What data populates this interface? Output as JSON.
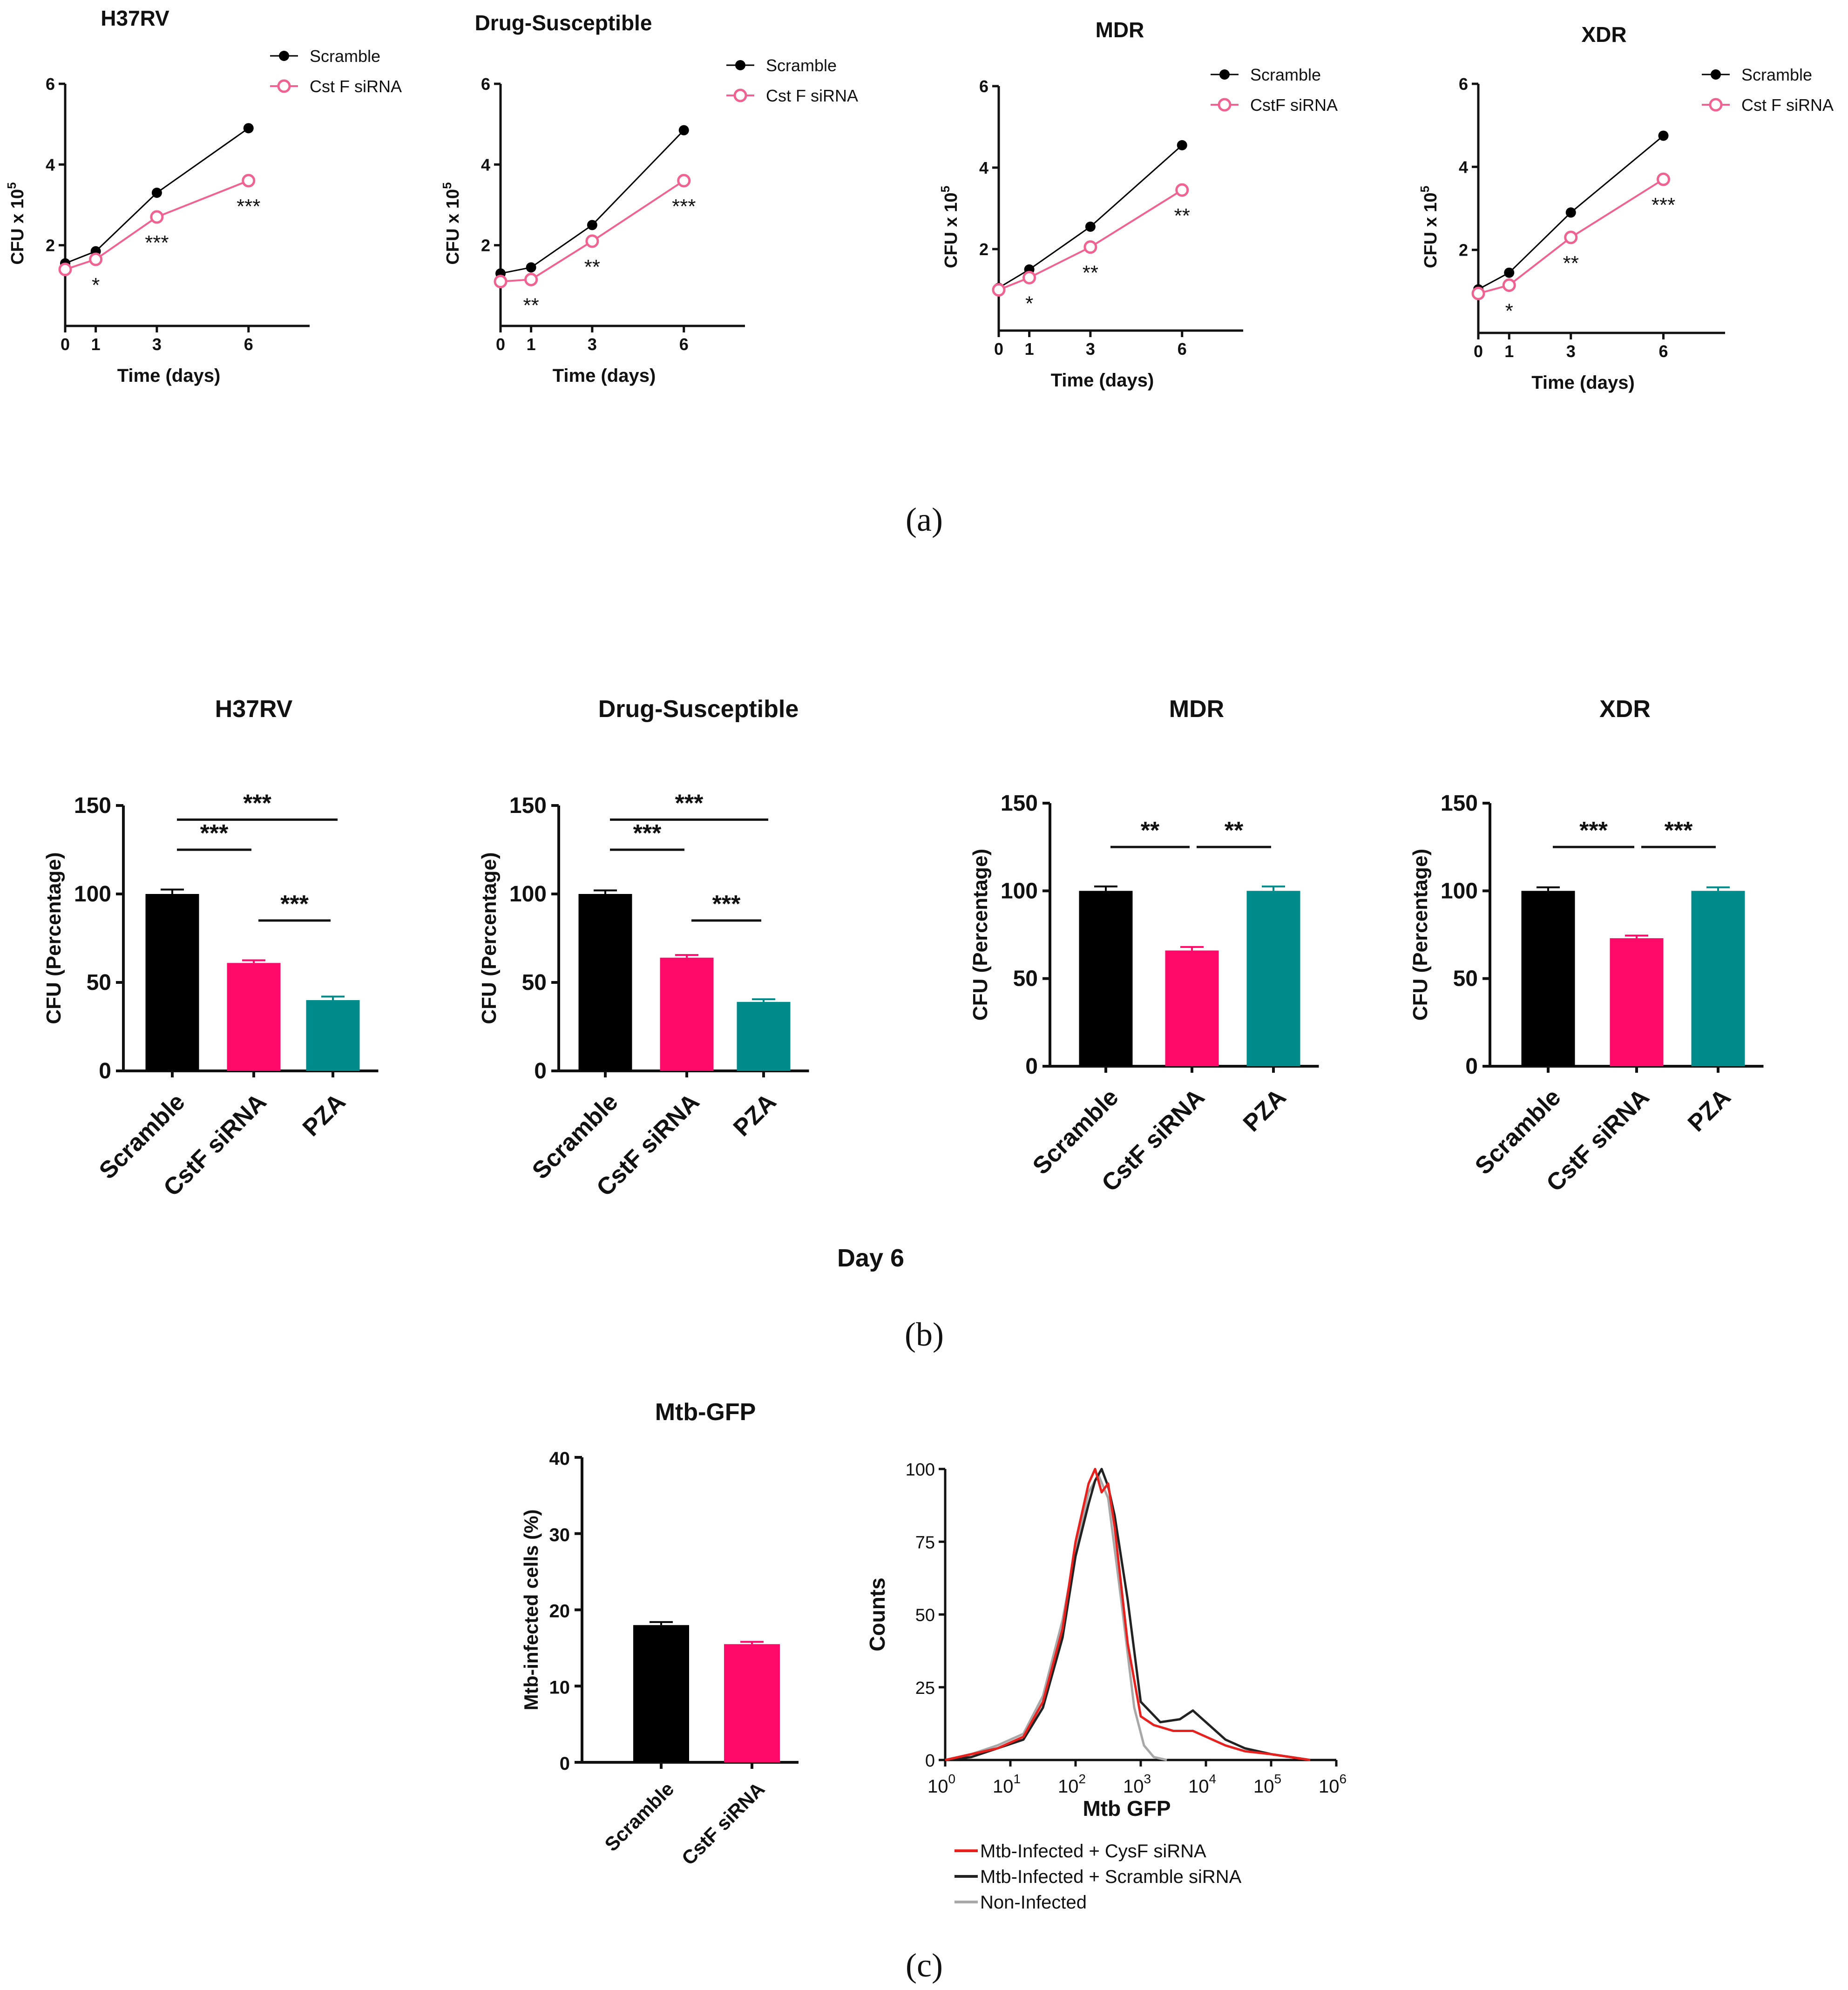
{
  "colors": {
    "scramble": "#000000",
    "cstf": "#f06292",
    "bar_cstf": "#ff0a68",
    "bar_pza": "#008b8b",
    "hist_cysf": "#e8201e",
    "hist_scramble": "#222222",
    "hist_noninf": "#a8a8a8"
  },
  "panel_letters": {
    "a": "(a)",
    "b": "(b)",
    "c": "(c)"
  },
  "day6_label": "Day 6",
  "chart_data": [
    {
      "id": "a1",
      "panel": "a",
      "type": "line",
      "title": "H37RV",
      "xlabel": "Time (days)",
      "ylabel": "CFU x 10",
      "ylabel_sup": "5",
      "x": [
        0,
        1,
        3,
        6
      ],
      "xticks": [
        "0",
        "1",
        "3",
        "6"
      ],
      "xlim": [
        0,
        8
      ],
      "ylim": [
        0,
        6
      ],
      "yticks": [
        "2",
        "4",
        "6"
      ],
      "series": [
        {
          "name": "Scramble",
          "values": [
            1.55,
            1.85,
            3.3,
            4.9
          ]
        },
        {
          "name": "Cst F siRNA",
          "values": [
            1.4,
            1.65,
            2.7,
            3.6
          ]
        }
      ],
      "significance": [
        "",
        "*",
        "***",
        "***"
      ]
    },
    {
      "id": "a2",
      "panel": "a",
      "type": "line",
      "title": "Drug-Susceptible",
      "xlabel": "Time (days)",
      "ylabel": "CFU x 10",
      "ylabel_sup": "5",
      "x": [
        0,
        1,
        3,
        6
      ],
      "xticks": [
        "0",
        "1",
        "3",
        "6"
      ],
      "xlim": [
        0,
        8
      ],
      "ylim": [
        0,
        6
      ],
      "yticks": [
        "2",
        "4",
        "6"
      ],
      "series": [
        {
          "name": "Scramble",
          "values": [
            1.3,
            1.45,
            2.5,
            4.85
          ]
        },
        {
          "name": "Cst F siRNA",
          "values": [
            1.1,
            1.15,
            2.1,
            3.6
          ]
        }
      ],
      "significance": [
        "",
        "**",
        "**",
        "***"
      ]
    },
    {
      "id": "a3",
      "panel": "a",
      "type": "line",
      "title": "MDR",
      "xlabel": "Time (days)",
      "ylabel": "CFU x 10",
      "ylabel_sup": "5",
      "x": [
        0,
        1,
        3,
        6
      ],
      "xticks": [
        "0",
        "1",
        "3",
        "6"
      ],
      "xlim": [
        0,
        8
      ],
      "ylim": [
        0,
        6
      ],
      "yticks": [
        "2",
        "4",
        "6"
      ],
      "series": [
        {
          "name": "Scramble",
          "values": [
            1.05,
            1.5,
            2.55,
            4.55
          ]
        },
        {
          "name": "CstF siRNA",
          "values": [
            1.0,
            1.3,
            2.05,
            3.45
          ]
        }
      ],
      "significance": [
        "",
        "*",
        "**",
        "**"
      ]
    },
    {
      "id": "a4",
      "panel": "a",
      "type": "line",
      "title": "XDR",
      "xlabel": "Time (days)",
      "ylabel": "CFU x 10",
      "ylabel_sup": "5",
      "x": [
        0,
        1,
        3,
        6
      ],
      "xticks": [
        "0",
        "1",
        "3",
        "6"
      ],
      "xlim": [
        0,
        8
      ],
      "ylim": [
        0,
        6
      ],
      "yticks": [
        "2",
        "4",
        "6"
      ],
      "series": [
        {
          "name": "Scramble",
          "values": [
            1.05,
            1.45,
            2.9,
            4.75
          ]
        },
        {
          "name": "Cst F siRNA",
          "values": [
            0.95,
            1.15,
            2.3,
            3.7
          ]
        }
      ],
      "significance": [
        "",
        "*",
        "**",
        "***"
      ]
    },
    {
      "id": "b1",
      "panel": "b",
      "type": "bar",
      "title": "H37RV",
      "ylabel": "CFU (Percentage)",
      "ylim": [
        0,
        150
      ],
      "yticks": [
        "0",
        "50",
        "100",
        "150"
      ],
      "categories": [
        "Scramble",
        "CstF siRNA",
        "PZA"
      ],
      "values": [
        100,
        61,
        40
      ],
      "errors": [
        2.5,
        1.5,
        2
      ],
      "brackets": [
        {
          "from": 0,
          "to": 2,
          "label": "***"
        },
        {
          "from": 0,
          "to": 1,
          "label": "***"
        },
        {
          "from": 1,
          "to": 2,
          "label": "***"
        }
      ]
    },
    {
      "id": "b2",
      "panel": "b",
      "type": "bar",
      "title": "Drug-Susceptible",
      "ylabel": "CFU (Percentage)",
      "ylim": [
        0,
        150
      ],
      "yticks": [
        "0",
        "50",
        "100",
        "150"
      ],
      "categories": [
        "Scramble",
        "CstF siRNA",
        "PZA"
      ],
      "values": [
        100,
        64,
        39
      ],
      "errors": [
        2,
        1.5,
        1.5
      ],
      "brackets": [
        {
          "from": 0,
          "to": 2,
          "label": "***"
        },
        {
          "from": 0,
          "to": 1,
          "label": "***"
        },
        {
          "from": 1,
          "to": 2,
          "label": "***"
        }
      ]
    },
    {
      "id": "b3",
      "panel": "b",
      "type": "bar",
      "title": "MDR",
      "ylabel": "CFU (Percentage)",
      "ylim": [
        0,
        150
      ],
      "yticks": [
        "0",
        "50",
        "100",
        "150"
      ],
      "categories": [
        "Scramble",
        "CstF siRNA",
        "PZA"
      ],
      "values": [
        100,
        66,
        100
      ],
      "errors": [
        2.5,
        2,
        2.5
      ],
      "brackets": [
        {
          "from": 0,
          "to": 1,
          "label": "**"
        },
        {
          "from": 1,
          "to": 2,
          "label": "**"
        }
      ]
    },
    {
      "id": "b4",
      "panel": "b",
      "type": "bar",
      "title": "XDR",
      "ylabel": "CFU (Percentage)",
      "ylim": [
        0,
        150
      ],
      "yticks": [
        "0",
        "50",
        "100",
        "150"
      ],
      "categories": [
        "Scramble",
        "CstF siRNA",
        "PZA"
      ],
      "values": [
        100,
        73,
        100
      ],
      "errors": [
        2,
        1.5,
        2
      ],
      "brackets": [
        {
          "from": 0,
          "to": 1,
          "label": "***"
        },
        {
          "from": 1,
          "to": 2,
          "label": "***"
        }
      ]
    },
    {
      "id": "c1",
      "panel": "c",
      "type": "bar",
      "title": "Mtb-GFP",
      "ylabel": "Mtb-infected cells (%)",
      "ylim": [
        0,
        40
      ],
      "yticks": [
        "0",
        "10",
        "20",
        "30",
        "40"
      ],
      "categories": [
        "Scramble",
        "CstF siRNA"
      ],
      "values": [
        18,
        15.5
      ],
      "errors": [
        0.4,
        0.3
      ]
    },
    {
      "id": "c2",
      "panel": "c",
      "type": "line",
      "title": "",
      "xlabel": "Mtb GFP",
      "ylabel": "Counts",
      "xscale": "log",
      "xlim": [
        0,
        6
      ],
      "ylim": [
        0,
        100
      ],
      "yticks": [
        "0",
        "25",
        "50",
        "75",
        "100"
      ],
      "xtick_base": "10",
      "xtick_exps": [
        "0",
        "1",
        "2",
        "3",
        "4",
        "5",
        "6"
      ],
      "series": [
        {
          "name": "Mtb-Infected + CysF siRNA",
          "x": [
            0,
            0.4,
            0.8,
            1.2,
            1.5,
            1.8,
            2.0,
            2.2,
            2.3,
            2.4,
            2.5,
            2.6,
            2.8,
            3.0,
            3.2,
            3.5,
            3.8,
            4.0,
            4.3,
            4.6,
            5.0,
            5.3,
            5.6
          ],
          "y": [
            0,
            2,
            4,
            8,
            20,
            45,
            75,
            95,
            100,
            92,
            95,
            80,
            40,
            15,
            12,
            10,
            10,
            8,
            5,
            3,
            2,
            1,
            0
          ]
        },
        {
          "name": "Mtb-Infected + Scramble siRNA",
          "x": [
            0,
            0.4,
            0.8,
            1.2,
            1.5,
            1.8,
            2.0,
            2.2,
            2.3,
            2.4,
            2.5,
            2.6,
            2.8,
            3.0,
            3.3,
            3.6,
            3.8,
            4.0,
            4.3,
            4.6,
            5.0,
            5.3,
            5.6
          ],
          "y": [
            0,
            1,
            4,
            7,
            18,
            42,
            70,
            88,
            96,
            100,
            94,
            84,
            55,
            20,
            13,
            14,
            17,
            13,
            7,
            4,
            2,
            1,
            0
          ]
        },
        {
          "name": "Non-Infected",
          "x": [
            0,
            0.4,
            0.8,
            1.2,
            1.5,
            1.8,
            2.0,
            2.2,
            2.35,
            2.5,
            2.7,
            2.9,
            3.05,
            3.2,
            3.4
          ],
          "y": [
            0,
            2,
            5,
            9,
            22,
            48,
            72,
            92,
            98,
            90,
            55,
            18,
            5,
            1,
            0
          ]
        }
      ]
    }
  ]
}
